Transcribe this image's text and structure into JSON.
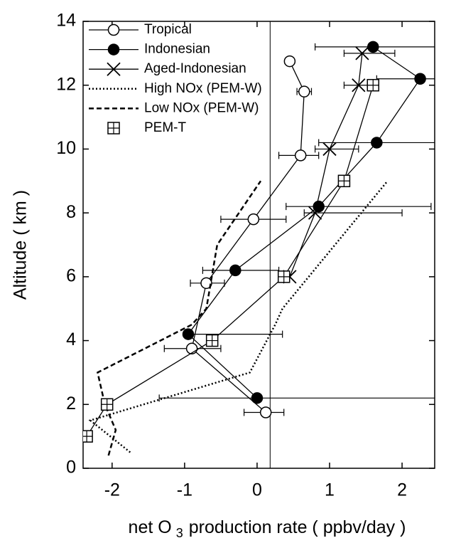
{
  "chart_data": {
    "type": "scatter",
    "x_label": [
      "net O",
      "3",
      "production rate ( ppbv/day )"
    ],
    "y_label": "Altitude ( km )",
    "xlim": [
      -2.4,
      2.45
    ],
    "ylim": [
      0,
      14
    ],
    "xticks": [
      -2,
      -1,
      0,
      1,
      2
    ],
    "yticks": [
      0,
      2,
      4,
      6,
      8,
      10,
      12,
      14
    ],
    "vline": 0.18,
    "legend": "upper left",
    "series": [
      {
        "name": "Tropical",
        "style": "circle-open",
        "color": "#000000",
        "x": [
          0.12,
          -0.9,
          -0.7,
          -0.05,
          0.6,
          0.65,
          0.45
        ],
        "y": [
          1.75,
          3.75,
          5.8,
          7.8,
          9.8,
          11.8,
          12.75
        ],
        "xerr": [
          [
            0.3,
            0.25
          ],
          [
            0.38,
            0.4
          ],
          [
            0.22,
            0.25
          ],
          [
            0.45,
            0.45
          ],
          [
            0.3,
            0.25
          ],
          [
            0.1,
            0.1
          ],
          null
        ]
      },
      {
        "name": "Indonesian",
        "style": "circle-filled",
        "color": "#000000",
        "x": [
          0.0,
          -0.95,
          -0.3,
          0.85,
          1.65,
          2.25,
          1.6
        ],
        "y": [
          2.2,
          4.2,
          6.2,
          8.2,
          10.2,
          12.2,
          13.2
        ],
        "xerr": [
          [
            1.35,
            2.6
          ],
          [
            0,
            1.3
          ],
          [
            0.45,
            0.6
          ],
          [
            0.45,
            1.55
          ],
          [
            0.8,
            0.9
          ],
          [
            0.6,
            0.3
          ],
          [
            0.8,
            0.9
          ]
        ]
      },
      {
        "name": "Aged-Indonesian",
        "style": "x",
        "color": "#000000",
        "x": [
          0.45,
          0.8,
          1.0,
          1.4,
          1.45
        ],
        "y": [
          6.0,
          8.0,
          10.0,
          12.0,
          13.0
        ],
        "xerr": [
          [
            0.05,
            0.0
          ],
          [
            0.15,
            1.2
          ],
          [
            0.2,
            0.4
          ],
          [
            0.2,
            0.25
          ],
          [
            0.25,
            0.45
          ]
        ]
      },
      {
        "name": "High NOx (PEM-W)",
        "style": "dotted",
        "color": "#000000",
        "x": [
          -1.75,
          -2.3,
          -0.1,
          0.25,
          0.35,
          1.8
        ],
        "y": [
          0.5,
          1.5,
          3.0,
          4.5,
          5.0,
          9.0
        ]
      },
      {
        "name": "Low NOx (PEM-W)",
        "style": "dashed",
        "color": "#000000",
        "x": [
          -2.05,
          -1.95,
          -2.1,
          -2.2,
          -0.9,
          -0.7,
          -0.55,
          0.05
        ],
        "y": [
          0.4,
          1.2,
          2.0,
          3.0,
          4.5,
          5.0,
          7.0,
          9.0
        ]
      },
      {
        "name": "PEM-T",
        "style": "square-plus",
        "color": "#000000",
        "x": [
          -2.35,
          -2.07,
          -0.62,
          0.37,
          1.2,
          1.6
        ],
        "y": [
          1.0,
          2.0,
          4.0,
          6.0,
          9.0,
          12.0
        ]
      }
    ]
  }
}
